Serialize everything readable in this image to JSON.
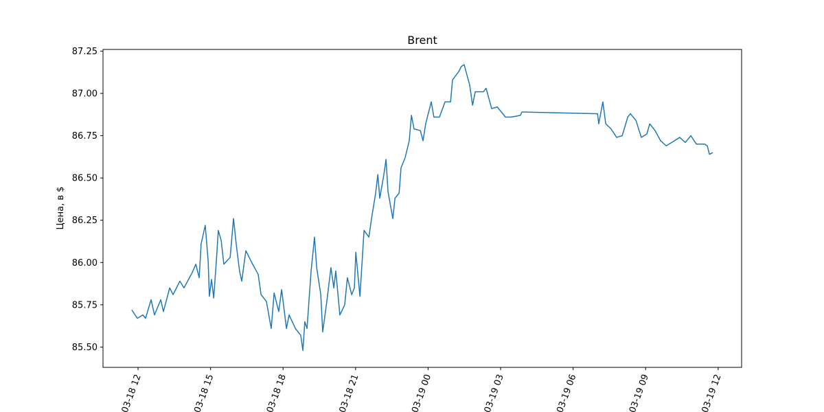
{
  "chart_data": {
    "type": "line",
    "title": "Brent",
    "ylabel": "Цена, в $",
    "color": "#1f77b4",
    "x": [
      11.74,
      11.97,
      12.2,
      12.31,
      12.54,
      12.68,
      12.94,
      13.05,
      13.31,
      13.45,
      13.73,
      13.9,
      14.24,
      14.39,
      14.53,
      14.61,
      14.78,
      14.9,
      14.95,
      15.04,
      15.13,
      15.24,
      15.32,
      15.44,
      15.55,
      15.81,
      15.95,
      16.06,
      16.2,
      16.29,
      16.46,
      16.74,
      16.97,
      17.09,
      17.31,
      17.51,
      17.63,
      17.82,
      17.94,
      18.14,
      18.25,
      18.51,
      18.73,
      18.82,
      18.9,
      18.99,
      19.07,
      19.16,
      19.3,
      19.39,
      19.56,
      19.64,
      19.81,
      19.98,
      20.1,
      20.18,
      20.35,
      20.55,
      20.66,
      20.84,
      20.95,
      21.01,
      21.18,
      21.35,
      21.55,
      21.66,
      21.83,
      21.92,
      22.0,
      22.17,
      22.26,
      22.34,
      22.54,
      22.63,
      22.8,
      22.88,
      23.05,
      23.22,
      23.31,
      23.42,
      23.68,
      23.79,
      23.9,
      24.13,
      24.24,
      24.47,
      24.7,
      24.93,
      25.01,
      25.27,
      25.38,
      25.49,
      25.72,
      25.84,
      25.95,
      26.29,
      26.4,
      26.63,
      26.86,
      27.09,
      27.2,
      27.43,
      27.82,
      27.88,
      31.01,
      31.06,
      31.23,
      31.35,
      31.57,
      31.8,
      32.03,
      32.26,
      32.37,
      32.6,
      32.82,
      33.05,
      33.17,
      33.39,
      33.62,
      33.85,
      34.19,
      34.41,
      34.64,
      34.87,
      35.1,
      35.44,
      35.55,
      35.64,
      35.78
    ],
    "values": [
      85.72,
      85.67,
      85.69,
      85.67,
      85.78,
      85.69,
      85.78,
      85.71,
      85.85,
      85.81,
      85.89,
      85.85,
      85.94,
      85.99,
      85.91,
      86.11,
      86.22,
      86.01,
      85.8,
      85.9,
      85.79,
      86.01,
      86.19,
      86.13,
      85.99,
      86.03,
      86.26,
      86.11,
      85.95,
      85.89,
      86.07,
      85.99,
      85.93,
      85.81,
      85.77,
      85.61,
      85.82,
      85.71,
      85.84,
      85.61,
      85.69,
      85.61,
      85.57,
      85.48,
      85.65,
      85.61,
      85.77,
      85.95,
      86.15,
      85.97,
      85.81,
      85.59,
      85.77,
      85.97,
      85.85,
      85.95,
      85.69,
      85.75,
      85.91,
      85.81,
      85.85,
      86.06,
      85.8,
      86.19,
      86.15,
      86.26,
      86.41,
      86.52,
      86.38,
      86.52,
      86.61,
      86.42,
      86.26,
      86.38,
      86.41,
      86.56,
      86.62,
      86.72,
      86.87,
      86.79,
      86.78,
      86.72,
      86.82,
      86.95,
      86.86,
      86.86,
      86.95,
      86.95,
      87.08,
      87.13,
      87.16,
      87.17,
      87.05,
      86.93,
      87.01,
      87.01,
      87.03,
      86.91,
      86.92,
      86.88,
      86.86,
      86.86,
      86.87,
      86.89,
      86.88,
      86.82,
      86.95,
      86.82,
      86.79,
      86.74,
      86.75,
      86.86,
      86.88,
      86.84,
      86.74,
      86.76,
      86.82,
      86.78,
      86.72,
      86.69,
      86.72,
      86.74,
      86.71,
      86.75,
      86.7,
      86.7,
      86.69,
      86.64,
      86.65
    ],
    "xlim": [
      10.55,
      36.97
    ],
    "xticks": [
      {
        "value": 12,
        "label": "03-18 12"
      },
      {
        "value": 15,
        "label": "03-18 15"
      },
      {
        "value": 18,
        "label": "03-18 18"
      },
      {
        "value": 21,
        "label": "03-18 21"
      },
      {
        "value": 24,
        "label": "03-19 00"
      },
      {
        "value": 27,
        "label": "03-19 03"
      },
      {
        "value": 30,
        "label": "03-19 06"
      },
      {
        "value": 33,
        "label": "03-19 09"
      },
      {
        "value": 36,
        "label": "03-19 12"
      }
    ],
    "ylim": [
      85.38,
      87.26
    ],
    "yticks": [
      {
        "value": 85.5,
        "label": "85.50"
      },
      85.75,
      {
        "value": 86,
        "label": "86.00"
      },
      86.25,
      {
        "value": 86.5,
        "label": "86.50"
      },
      86.75,
      {
        "value": 87,
        "label": "87.00"
      },
      87.25
    ],
    "grid": false
  }
}
